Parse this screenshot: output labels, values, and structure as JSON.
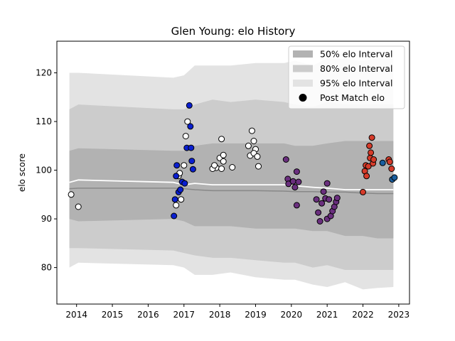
{
  "chart_data": {
    "type": "scatter",
    "title": "Glen Young: elo History",
    "xlabel": "",
    "ylabel": "elo score",
    "xlim": [
      2013.45,
      2023.3
    ],
    "ylim": [
      72.5,
      126.5
    ],
    "x_ticks": [
      2014,
      2015,
      2016,
      2017,
      2018,
      2019,
      2020,
      2021,
      2022,
      2023
    ],
    "y_ticks": [
      80,
      90,
      100,
      110,
      120
    ],
    "grid": false,
    "legend_position": "top-right",
    "colors": {
      "band95": "#e3e3e3",
      "band80": "#cccccc",
      "band50": "#b2b2b2",
      "mean_line": "#ffffff",
      "median_line": "#888888",
      "white_marker": "#ffffff",
      "blue_marker": "#0a1fd0",
      "purple_marker": "#6a2f7e",
      "red_marker": "#d63b2a",
      "teal_marker": "#1a5fa0"
    },
    "legend": [
      {
        "label": "50% elo Interval",
        "kind": "band50"
      },
      {
        "label": "80% elo Interval",
        "kind": "band80"
      },
      {
        "label": "95% elo Interval",
        "kind": "band95"
      },
      {
        "label": "Post Match elo",
        "kind": "marker"
      }
    ],
    "bands": {
      "x": [
        2013.8,
        2014.05,
        2016.7,
        2017.0,
        2017.3,
        2017.8,
        2018.3,
        2019.0,
        2019.8,
        2020.1,
        2020.6,
        2021.0,
        2021.5,
        2022.0,
        2022.4,
        2022.85
      ],
      "p95_upper": [
        120.0,
        120.0,
        119.0,
        119.5,
        121.5,
        121.5,
        121.5,
        122.0,
        122.0,
        122.5,
        121.5,
        123.0,
        122.8,
        122.5,
        123.0,
        123.0
      ],
      "p95_lower": [
        80.0,
        81.0,
        80.5,
        80.0,
        78.5,
        78.5,
        79.0,
        78.0,
        77.5,
        77.5,
        76.5,
        76.0,
        77.0,
        75.5,
        75.8,
        76.0
      ],
      "p80_upper": [
        112.5,
        113.5,
        112.5,
        112.5,
        113.5,
        114.5,
        114.0,
        114.5,
        114.0,
        113.5,
        113.0,
        114.0,
        113.5,
        113.5,
        113.5,
        113.5
      ],
      "p80_lower": [
        84.0,
        84.0,
        83.5,
        83.0,
        82.5,
        82.0,
        82.0,
        81.5,
        81.0,
        81.0,
        80.0,
        80.5,
        79.5,
        79.5,
        79.5,
        79.5
      ],
      "p50_upper": [
        104.0,
        104.5,
        104.0,
        104.0,
        105.0,
        105.5,
        105.5,
        105.5,
        105.5,
        105.0,
        105.0,
        105.5,
        106.0,
        106.0,
        106.0,
        106.0
      ],
      "p50_lower": [
        90.0,
        89.5,
        90.0,
        89.5,
        88.5,
        88.5,
        88.5,
        88.0,
        88.0,
        88.0,
        87.5,
        87.5,
        86.5,
        86.5,
        86.0,
        86.0
      ],
      "mean": [
        97.5,
        98.0,
        97.5,
        97.0,
        97.3,
        97.0,
        97.0,
        97.0,
        97.0,
        96.8,
        96.5,
        96.3,
        96.0,
        96.0,
        96.0,
        96.0
      ],
      "median": [
        96.2,
        96.3,
        96.3,
        96.2,
        96.0,
        95.8,
        95.8,
        95.8,
        95.7,
        95.6,
        95.6,
        95.5,
        95.5,
        95.3,
        95.2,
        95.2
      ]
    },
    "series": [
      {
        "color_key": "white_marker",
        "points": [
          [
            2013.85,
            95.0
          ],
          [
            2014.05,
            92.5
          ],
          [
            2016.78,
            92.8
          ],
          [
            2016.85,
            98.8
          ],
          [
            2016.88,
            99.4
          ],
          [
            2016.92,
            94.0
          ],
          [
            2017.0,
            101.0
          ],
          [
            2017.05,
            107.0
          ],
          [
            2017.1,
            110.0
          ],
          [
            2017.9,
            100.5
          ],
          [
            2017.8,
            100.3
          ],
          [
            2017.85,
            101.0
          ],
          [
            2018.0,
            102.5
          ],
          [
            2018.05,
            106.4
          ],
          [
            2018.1,
            103.1
          ],
          [
            2018.05,
            100.3
          ],
          [
            2018.1,
            101.8
          ],
          [
            2018.35,
            100.6
          ],
          [
            2018.8,
            105.0
          ],
          [
            2018.85,
            103.0
          ],
          [
            2018.9,
            108.1
          ],
          [
            2018.95,
            106.0
          ],
          [
            2019.0,
            104.3
          ],
          [
            2018.95,
            103.5
          ],
          [
            2019.05,
            102.8
          ],
          [
            2019.08,
            100.8
          ]
        ]
      },
      {
        "color_key": "blue_marker",
        "points": [
          [
            2016.72,
            90.6
          ],
          [
            2016.75,
            94.0
          ],
          [
            2016.78,
            98.8
          ],
          [
            2016.8,
            101.0
          ],
          [
            2016.85,
            95.5
          ],
          [
            2016.9,
            96.0
          ],
          [
            2016.95,
            97.6
          ],
          [
            2017.02,
            97.3
          ],
          [
            2017.08,
            104.6
          ],
          [
            2017.15,
            113.3
          ],
          [
            2017.18,
            109.0
          ],
          [
            2017.2,
            104.6
          ],
          [
            2017.22,
            101.9
          ],
          [
            2017.25,
            100.2
          ]
        ]
      },
      {
        "color_key": "purple_marker",
        "points": [
          [
            2019.85,
            102.2
          ],
          [
            2019.9,
            98.2
          ],
          [
            2019.92,
            97.2
          ],
          [
            2020.05,
            97.7
          ],
          [
            2020.1,
            96.5
          ],
          [
            2020.15,
            99.7
          ],
          [
            2020.15,
            92.8
          ],
          [
            2020.2,
            97.6
          ],
          [
            2020.7,
            94.0
          ],
          [
            2020.75,
            91.3
          ],
          [
            2020.8,
            89.5
          ],
          [
            2020.85,
            93.2
          ],
          [
            2020.9,
            95.6
          ],
          [
            2020.95,
            94.2
          ],
          [
            2021.0,
            90.0
          ],
          [
            2021.0,
            97.3
          ],
          [
            2021.05,
            94.0
          ],
          [
            2021.1,
            90.6
          ],
          [
            2021.15,
            91.6
          ],
          [
            2021.2,
            92.5
          ],
          [
            2021.25,
            93.5
          ],
          [
            2021.28,
            94.3
          ]
        ]
      },
      {
        "color_key": "red_marker",
        "points": [
          [
            2022.0,
            95.5
          ],
          [
            2022.05,
            99.8
          ],
          [
            2022.08,
            101.0
          ],
          [
            2022.1,
            98.8
          ],
          [
            2022.15,
            100.8
          ],
          [
            2022.18,
            105.0
          ],
          [
            2022.2,
            102.5
          ],
          [
            2022.22,
            103.6
          ],
          [
            2022.25,
            106.7
          ],
          [
            2022.28,
            101.4
          ],
          [
            2022.3,
            102.2
          ],
          [
            2022.72,
            102.2
          ],
          [
            2022.75,
            101.7
          ],
          [
            2022.8,
            100.3
          ]
        ]
      },
      {
        "color_key": "teal_marker",
        "points": [
          [
            2022.55,
            101.5
          ],
          [
            2022.82,
            98.1
          ],
          [
            2022.88,
            98.5
          ]
        ]
      }
    ]
  }
}
